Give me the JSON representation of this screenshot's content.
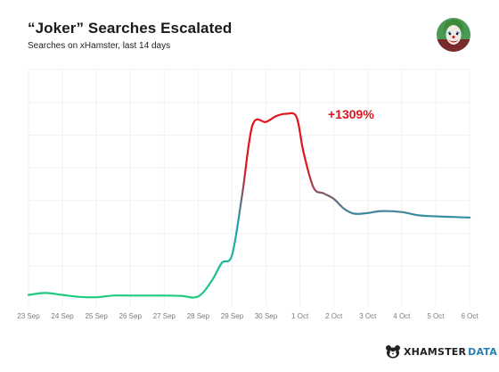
{
  "header": {
    "title": "“Joker” Searches Escalated",
    "subtitle": "Searches on xHamster, last 14 days"
  },
  "avatar": {
    "icon": "joker-face-icon"
  },
  "annotation": {
    "text": "+1309%",
    "color": "#e1141e"
  },
  "brand": {
    "name": "XHAMSTER",
    "suffix": "DATA",
    "icon": "hamster-icon"
  },
  "colors": {
    "low": "#1ed07a",
    "mid": "#1aa1b8",
    "high": "#e1141e",
    "grid": "#f1f1f1"
  },
  "chart_data": {
    "type": "line",
    "x_ticks": [
      "23 Sep",
      "24 Sep",
      "25 Sep",
      "26 Sep",
      "27 Sep",
      "28 Sep",
      "29 Sep",
      "30 Sep",
      "1 Oct",
      "2 Oct",
      "3 Oct",
      "4 Oct",
      "5 Oct",
      "6 Oct"
    ],
    "ylim": [
      0,
      7
    ],
    "grid": true,
    "y_ticks": [
      1,
      2,
      3,
      4,
      5,
      6,
      7
    ],
    "series": [
      {
        "values": [
          [
            0,
            0.12
          ],
          [
            0.5,
            0.18
          ],
          [
            1,
            0.12
          ],
          [
            1.5,
            0.06
          ],
          [
            2,
            0.05
          ],
          [
            2.5,
            0.1
          ],
          [
            3,
            0.1
          ],
          [
            4,
            0.1
          ],
          [
            4.5,
            0.09
          ],
          [
            5,
            0.07
          ],
          [
            5.4,
            0.55
          ],
          [
            5.7,
            1.1
          ],
          [
            6,
            1.35
          ],
          [
            6.3,
            3.2
          ],
          [
            6.6,
            5.3
          ],
          [
            7,
            5.4
          ],
          [
            7.3,
            5.58
          ],
          [
            7.6,
            5.65
          ],
          [
            7.9,
            5.55
          ],
          [
            8.1,
            4.5
          ],
          [
            8.4,
            3.4
          ],
          [
            8.7,
            3.22
          ],
          [
            9,
            3.05
          ],
          [
            9.3,
            2.75
          ],
          [
            9.6,
            2.6
          ],
          [
            10,
            2.62
          ],
          [
            10.4,
            2.68
          ],
          [
            11,
            2.65
          ],
          [
            11.5,
            2.55
          ],
          [
            12,
            2.52
          ],
          [
            12.5,
            2.5
          ],
          [
            13,
            2.48
          ]
        ]
      }
    ]
  }
}
